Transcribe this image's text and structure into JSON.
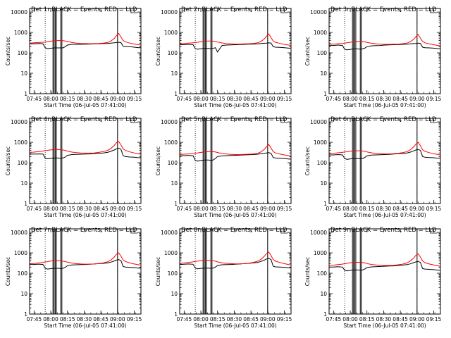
{
  "chart_data": {
    "type": "line",
    "layout": "3x3 grid of panels",
    "shared": {
      "xlabel": "Start Time (06-Jul-05 07:41:00)",
      "ylabel": "Counts/sec",
      "x_tick_labels": [
        "07:45",
        "08:00",
        "08:15",
        "08:30",
        "08:45",
        "09:00",
        "09:15"
      ],
      "x_tick_minutes": [
        4,
        19,
        34,
        49,
        64,
        79,
        94
      ],
      "xlim_minutes": [
        0,
        100
      ],
      "y_scale": "log",
      "ylim": [
        1,
        15000
      ],
      "y_tick_labels": [
        "1",
        "10",
        "100",
        "1000",
        "10000"
      ],
      "y_tick_values": [
        1,
        10,
        100,
        1000,
        10000
      ],
      "dotted_vertical_lines_minutes": [
        14,
        79
      ],
      "solid_vertical_lines_minutes": [
        21,
        22,
        23,
        24,
        28,
        29,
        79
      ],
      "top_bracket_minutes": [
        91,
        97
      ],
      "x_minutes": [
        0,
        4,
        8,
        12,
        14,
        16,
        18,
        20,
        22,
        24,
        26,
        28,
        30,
        32,
        34,
        38,
        42,
        46,
        50,
        54,
        58,
        62,
        66,
        70,
        73,
        76,
        78,
        80,
        82,
        84,
        86,
        90,
        94,
        98,
        100
      ]
    },
    "series_colors": {
      "events": "#000000",
      "lld": "#ff0000"
    },
    "panels": [
      {
        "title": "Det 1r  BLACK = Events, RED = LLD",
        "series": [
          {
            "name": "Events",
            "values": [
              280,
              280,
              290,
              280,
              180,
              160,
              165,
              170,
              175,
              175,
              175,
              175,
              175,
              200,
              240,
              260,
              260,
              260,
              265,
              270,
              275,
              280,
              285,
              290,
              300,
              310,
              320,
              330,
              320,
              210,
              200,
              200,
              190,
              180,
              180
            ]
          },
          {
            "name": "LLD",
            "values": [
              300,
              310,
              320,
              330,
              340,
              350,
              370,
              380,
              390,
              400,
              400,
              400,
              395,
              380,
              360,
              320,
              300,
              290,
              285,
              280,
              285,
              290,
              300,
              320,
              380,
              500,
              700,
              900,
              600,
              400,
              350,
              300,
              270,
              250,
              240
            ]
          }
        ]
      },
      {
        "title": "Det 2r  BLACK = Events, RED = LLD",
        "series": [
          {
            "name": "Events",
            "values": [
              250,
              250,
              260,
              250,
              160,
              150,
              155,
              160,
              165,
              165,
              165,
              160,
              165,
              180,
              110,
              230,
              240,
              245,
              250,
              255,
              260,
              265,
              270,
              275,
              285,
              295,
              300,
              310,
              300,
              200,
              190,
              185,
              180,
              170,
              170
            ]
          },
          {
            "name": "LLD",
            "values": [
              280,
              290,
              300,
              310,
              320,
              330,
              345,
              355,
              365,
              375,
              380,
              380,
              375,
              365,
              340,
              305,
              285,
              275,
              270,
              270,
              275,
              280,
              290,
              310,
              360,
              480,
              650,
              850,
              560,
              380,
              330,
              290,
              260,
              240,
              230
            ]
          }
        ]
      },
      {
        "title": "Det 3r  BLACK = Events, RED = LLD",
        "series": [
          {
            "name": "Events",
            "values": [
              230,
              230,
              240,
              230,
              150,
              140,
              145,
              150,
              155,
              155,
              155,
              150,
              155,
              170,
              200,
              220,
              225,
              230,
              240,
              245,
              250,
              255,
              260,
              265,
              275,
              285,
              290,
              300,
              290,
              190,
              180,
              175,
              170,
              160,
              160
            ]
          },
          {
            "name": "LLD",
            "values": [
              260,
              270,
              280,
              290,
              300,
              310,
              325,
              335,
              345,
              355,
              360,
              360,
              355,
              345,
              325,
              295,
              275,
              265,
              260,
              260,
              265,
              270,
              280,
              300,
              350,
              460,
              620,
              800,
              530,
              360,
              310,
              275,
              250,
              230,
              220
            ]
          }
        ]
      },
      {
        "title": "Det 4r  BLACK = Events, RED = LLD",
        "series": [
          {
            "name": "Events",
            "values": [
              260,
              265,
              270,
              265,
              170,
              155,
              160,
              165,
              170,
              170,
              170,
              165,
              170,
              190,
              230,
              250,
              255,
              260,
              265,
              270,
              280,
              290,
              300,
              320,
              360,
              420,
              480,
              520,
              460,
              220,
              200,
              190,
              185,
              175,
              175
            ]
          },
          {
            "name": "LLD",
            "values": [
              320,
              330,
              350,
              370,
              390,
              400,
              420,
              430,
              440,
              445,
              440,
              430,
              420,
              400,
              370,
              330,
              310,
              300,
              295,
              295,
              300,
              320,
              350,
              400,
              500,
              700,
              950,
              1100,
              750,
              480,
              400,
              340,
              300,
              270,
              260
            ]
          }
        ]
      },
      {
        "title": "Det 5r  BLACK = Events, RED = LLD",
        "series": [
          {
            "name": "Events",
            "values": [
              220,
              220,
              230,
              220,
              130,
              120,
              125,
              130,
              135,
              135,
              135,
              130,
              135,
              160,
              200,
              215,
              220,
              225,
              230,
              235,
              240,
              245,
              250,
              260,
              275,
              290,
              300,
              310,
              290,
              180,
              170,
              165,
              160,
              150,
              150
            ]
          },
          {
            "name": "LLD",
            "values": [
              250,
              260,
              270,
              280,
              290,
              300,
              315,
              325,
              335,
              345,
              350,
              350,
              345,
              335,
              315,
              285,
              265,
              255,
              250,
              250,
              255,
              260,
              270,
              290,
              340,
              450,
              600,
              780,
              520,
              350,
              300,
              265,
              240,
              220,
              210
            ]
          }
        ]
      },
      {
        "title": "Det 6r  BLACK = Events, RED = LLD",
        "series": [
          {
            "name": "Events",
            "values": [
              240,
              240,
              250,
              240,
              160,
              145,
              150,
              155,
              160,
              160,
              160,
              155,
              160,
              180,
              215,
              235,
              240,
              245,
              250,
              255,
              265,
              275,
              285,
              300,
              330,
              380,
              420,
              450,
              400,
              200,
              185,
              180,
              175,
              165,
              165
            ]
          },
          {
            "name": "LLD",
            "values": [
              280,
              290,
              305,
              320,
              335,
              345,
              360,
              370,
              380,
              385,
              385,
              380,
              375,
              360,
              335,
              305,
              285,
              275,
              270,
              270,
              275,
              290,
              310,
              350,
              430,
              600,
              820,
              1000,
              680,
              430,
              360,
              310,
              275,
              250,
              240
            ]
          }
        ]
      },
      {
        "title": "Det 7r  BLACK = Events, RED = LLD",
        "series": [
          {
            "name": "Events",
            "values": [
              270,
              270,
              280,
              270,
              175,
              160,
              165,
              170,
              175,
              175,
              175,
              170,
              175,
              195,
              235,
              255,
              260,
              265,
              270,
              275,
              285,
              295,
              305,
              320,
              350,
              400,
              440,
              470,
              420,
              215,
              200,
              195,
              190,
              180,
              180
            ]
          },
          {
            "name": "LLD",
            "values": [
              290,
              300,
              320,
              340,
              360,
              370,
              390,
              400,
              410,
              415,
              410,
              400,
              390,
              375,
              350,
              315,
              295,
              285,
              280,
              280,
              285,
              300,
              320,
              360,
              440,
              620,
              850,
              1000,
              700,
              450,
              380,
              320,
              285,
              260,
              250
            ]
          }
        ]
      },
      {
        "title": "Det 8r  BLACK = Events, RED = LLD",
        "series": [
          {
            "name": "Events",
            "values": [
              270,
              275,
              285,
              275,
              180,
              165,
              170,
              175,
              180,
              180,
              180,
              175,
              180,
              200,
              240,
              260,
              265,
              270,
              275,
              285,
              295,
              305,
              320,
              340,
              380,
              440,
              500,
              540,
              470,
              220,
              205,
              200,
              195,
              185,
              185
            ]
          },
          {
            "name": "LLD",
            "values": [
              310,
              320,
              340,
              360,
              380,
              390,
              410,
              420,
              430,
              435,
              430,
              420,
              410,
              390,
              360,
              325,
              305,
              295,
              290,
              290,
              295,
              310,
              340,
              390,
              480,
              680,
              920,
              1100,
              740,
              470,
              390,
              335,
              295,
              265,
              255
            ]
          }
        ]
      },
      {
        "title": "Det 9r  BLACK = Events, RED = LLD",
        "series": [
          {
            "name": "Events",
            "values": [
              200,
              200,
              210,
              200,
              140,
              130,
              135,
              140,
              145,
              145,
              145,
              140,
              145,
              160,
              190,
              205,
              210,
              215,
              220,
              225,
              230,
              240,
              250,
              265,
              290,
              330,
              360,
              380,
              340,
              170,
              160,
              155,
              150,
              140,
              140
            ]
          },
          {
            "name": "LLD",
            "values": [
              240,
              250,
              265,
              280,
              295,
              305,
              320,
              330,
              340,
              345,
              345,
              340,
              335,
              320,
              300,
              270,
              255,
              245,
              240,
              240,
              245,
              260,
              280,
              320,
              400,
              560,
              760,
              900,
              620,
              400,
              330,
              285,
              255,
              230,
              220
            ]
          }
        ]
      }
    ]
  }
}
